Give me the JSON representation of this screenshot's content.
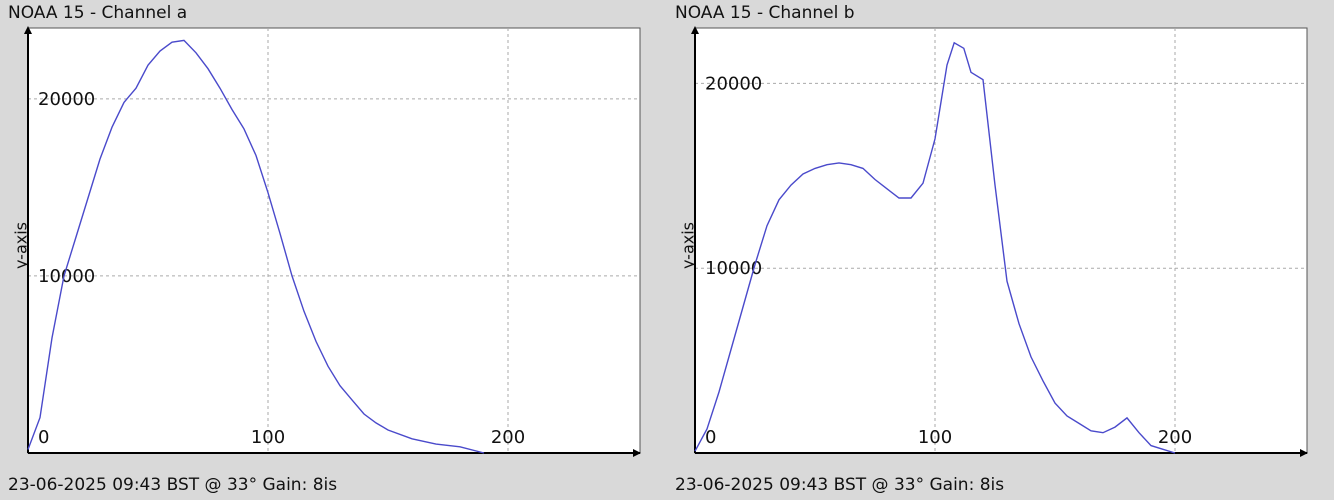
{
  "charts": [
    {
      "title": "NOAA 15 - Channel a",
      "footer": "23-06-2025 09:43 BST @ 33° Gain: 8is",
      "ylabel": "y-axis"
    },
    {
      "title": "NOAA 15 - Channel b",
      "footer": "23-06-2025 09:43 BST @ 33° Gain: 8is",
      "ylabel": "y-axis"
    }
  ],
  "chart_data": [
    {
      "type": "line",
      "title": "NOAA 15 - Channel a",
      "xlabel": "",
      "ylabel": "y-axis",
      "xlim": [
        0,
        255
      ],
      "ylim": [
        0,
        24000
      ],
      "xticks": [
        0,
        100,
        200
      ],
      "yticks": [
        10000,
        20000
      ],
      "grid": true,
      "line_color": "#4a4acb",
      "x": [
        0,
        5,
        10,
        15,
        20,
        25,
        30,
        35,
        40,
        45,
        50,
        55,
        60,
        65,
        70,
        75,
        80,
        85,
        90,
        95,
        100,
        105,
        110,
        115,
        120,
        125,
        130,
        135,
        140,
        145,
        150,
        160,
        170,
        180,
        190
      ],
      "y": [
        200,
        2000,
        6500,
        10000,
        12200,
        14400,
        16600,
        18400,
        19800,
        20600,
        21900,
        22700,
        23200,
        23300,
        22600,
        21700,
        20600,
        19400,
        18300,
        16800,
        14700,
        12400,
        10000,
        8000,
        6300,
        4900,
        3800,
        3000,
        2200,
        1700,
        1300,
        800,
        500,
        350,
        0
      ]
    },
    {
      "type": "line",
      "title": "NOAA 15 - Channel b",
      "xlabel": "",
      "ylabel": "y-axis",
      "xlim": [
        0,
        255
      ],
      "ylim": [
        0,
        23000
      ],
      "xticks": [
        0,
        100,
        200
      ],
      "yticks": [
        10000,
        20000
      ],
      "grid": true,
      "line_color": "#4a4acb",
      "x": [
        0,
        5,
        10,
        15,
        20,
        25,
        30,
        35,
        40,
        45,
        50,
        55,
        60,
        65,
        70,
        75,
        80,
        85,
        90,
        95,
        100,
        105,
        108,
        112,
        115,
        120,
        125,
        130,
        135,
        140,
        145,
        150,
        155,
        160,
        165,
        170,
        175,
        180,
        185,
        190,
        195,
        200
      ],
      "y": [
        100,
        1300,
        3300,
        5600,
        7900,
        10200,
        12300,
        13700,
        14500,
        15100,
        15400,
        15600,
        15700,
        15600,
        15400,
        14800,
        14300,
        13800,
        13800,
        14600,
        17000,
        21000,
        22200,
        21900,
        20600,
        20200,
        14500,
        9300,
        7000,
        5200,
        3900,
        2700,
        2000,
        1600,
        1200,
        1100,
        1400,
        1900,
        1100,
        400,
        200,
        0
      ]
    }
  ]
}
